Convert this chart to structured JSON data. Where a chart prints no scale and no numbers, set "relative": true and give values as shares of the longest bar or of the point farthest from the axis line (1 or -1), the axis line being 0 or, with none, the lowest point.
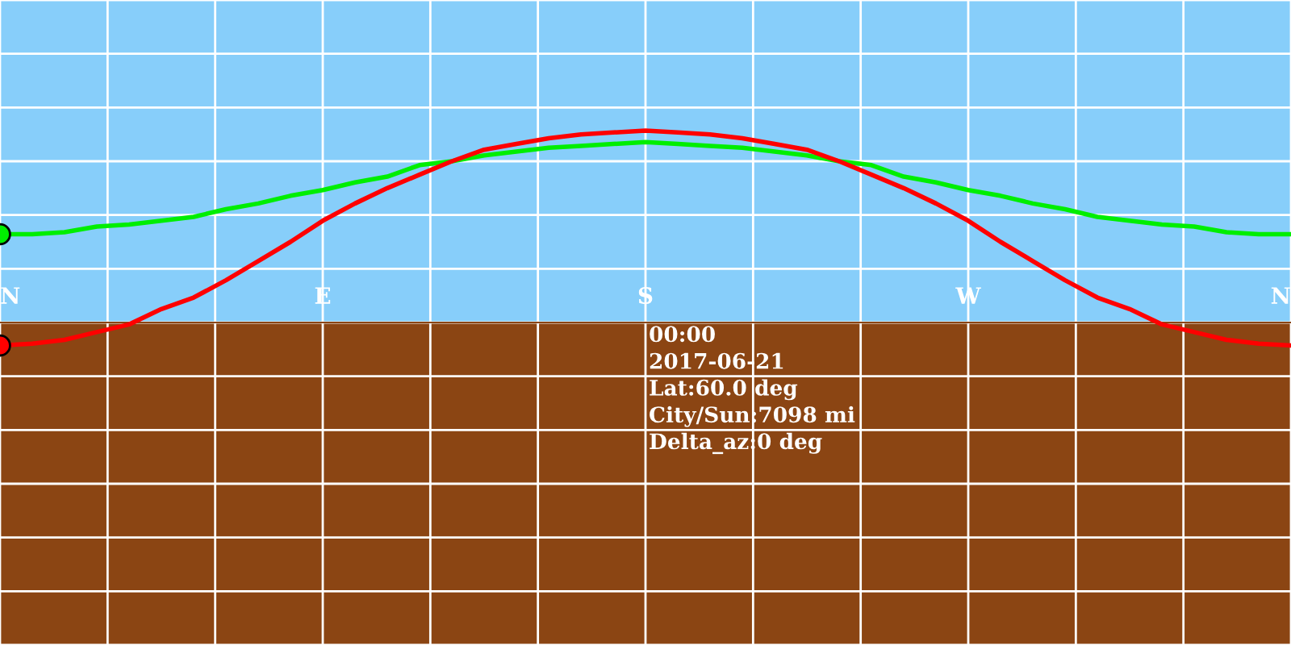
{
  "chart_data": {
    "type": "line",
    "relative": true,
    "categories": [
      "N",
      null,
      null,
      null,
      null,
      null,
      null,
      null,
      null,
      null,
      "E",
      null,
      null,
      null,
      null,
      null,
      null,
      null,
      null,
      null,
      "S",
      null,
      null,
      null,
      null,
      null,
      null,
      null,
      null,
      null,
      "W",
      null,
      null,
      null,
      null,
      null,
      null,
      null,
      null,
      null,
      "N"
    ],
    "series": [
      {
        "type": "line",
        "color": "#00ee00",
        "values": [
          0.46,
          0.46,
          0.47,
          0.5,
          0.51,
          0.53,
          0.55,
          0.59,
          0.62,
          0.66,
          0.69,
          0.73,
          0.76,
          0.82,
          0.84,
          0.87,
          0.89,
          0.91,
          0.92,
          0.93,
          0.94,
          0.93,
          0.92,
          0.91,
          0.89,
          0.87,
          0.84,
          0.82,
          0.76,
          0.73,
          0.69,
          0.66,
          0.62,
          0.59,
          0.55,
          0.53,
          0.51,
          0.5,
          0.47,
          0.46,
          0.46
        ]
      },
      {
        "type": "line",
        "color": "#ff0000",
        "values": [
          -0.12,
          -0.11,
          -0.09,
          -0.05,
          -0.01,
          0.07,
          0.13,
          0.22,
          0.32,
          0.42,
          0.53,
          0.62,
          0.7,
          0.77,
          0.84,
          0.9,
          0.93,
          0.96,
          0.98,
          0.99,
          1,
          0.99,
          0.98,
          0.96,
          0.93,
          0.9,
          0.84,
          0.77,
          0.7,
          0.62,
          0.53,
          0.42,
          0.32,
          0.22,
          0.13,
          0.07,
          -0.01,
          -0.05,
          -0.09,
          -0.11,
          -0.12
        ]
      },
      {
        "type": "scatter",
        "color": "#00ee00",
        "marker": "circle",
        "values": [
          0.46,
          null,
          null,
          null,
          null,
          null,
          null,
          null,
          null,
          null,
          null,
          null,
          null,
          null,
          null,
          null,
          null,
          null,
          null,
          null,
          null,
          null,
          null,
          null,
          null,
          null,
          null,
          null,
          null,
          null,
          null,
          null,
          null,
          null,
          null,
          null,
          null,
          null,
          null,
          null,
          null
        ]
      },
      {
        "type": "scatter",
        "color": "#ff0000",
        "marker": "circle",
        "values": [
          -0.12,
          null,
          null,
          null,
          null,
          null,
          null,
          null,
          null,
          null,
          null,
          null,
          null,
          null,
          null,
          null,
          null,
          null,
          null,
          null,
          null,
          null,
          null,
          null,
          null,
          null,
          null,
          null,
          null,
          null,
          null,
          null,
          null,
          null,
          null,
          null,
          null,
          null,
          null,
          null,
          null
        ]
      }
    ],
    "grid": true,
    "annotations": [
      "00:00",
      "2017-06-21",
      "Lat:60.0 deg",
      "City/Sun:7098 mi",
      "Delta_az:0 deg"
    ]
  }
}
